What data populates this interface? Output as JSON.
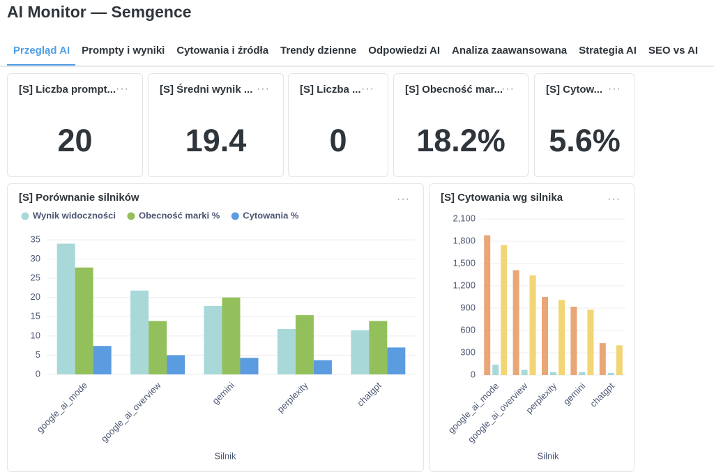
{
  "header": {
    "title": "AI Monitor — Semgence"
  },
  "tabs": {
    "items": [
      "Przegląd AI",
      "Prompty i wyniki",
      "Cytowania i źródła",
      "Trendy dzienne",
      "Odpowiedzi AI",
      "Analiza zaawansowana",
      "Strategia AI",
      "SEO vs AI"
    ],
    "active": 0
  },
  "kpis": [
    {
      "title": "[S] Liczba prompt...",
      "value": "20"
    },
    {
      "title": "[S] Średni wynik ...",
      "value": "19.4"
    },
    {
      "title": "[S] Liczba ...",
      "value": "0"
    },
    {
      "title": "[S] Obecność mar...",
      "value": "18.2%"
    },
    {
      "title": "[S] Cytow...",
      "value": "5.6%"
    }
  ],
  "chart_data": [
    {
      "type": "bar",
      "title": "[S] Porównanie silników",
      "x_label": "Silnik",
      "categories": [
        "google_ai_mode",
        "google_ai_overview",
        "gemini",
        "perplexity",
        "chatgpt"
      ],
      "series": [
        {
          "name": "Wynik widoczności",
          "color": "#a8d8d8",
          "values": [
            34,
            21.8,
            17.8,
            11.8,
            11.5
          ]
        },
        {
          "name": "Obecność marki %",
          "color": "#93c05a",
          "values": [
            27.8,
            13.9,
            20,
            15.4,
            13.9
          ]
        },
        {
          "name": "Cytowania %",
          "color": "#5b9be0",
          "values": [
            7.4,
            5,
            4.3,
            3.7,
            7
          ]
        }
      ],
      "ylim": [
        0,
        35
      ],
      "yticks": [
        0,
        5,
        10,
        15,
        20,
        25,
        30,
        35
      ],
      "grid": true,
      "legend": "top"
    },
    {
      "type": "bar",
      "title": "[S] Cytowania wg silnika",
      "x_label": "Silnik",
      "categories": [
        "google_ai_mode",
        "google_ai_overview",
        "perplexity",
        "gemini",
        "chatgpt"
      ],
      "series": [
        {
          "color": "#e9a677",
          "values": [
            1880,
            1410,
            1050,
            920,
            430
          ]
        },
        {
          "color": "#a8d8d8",
          "values": [
            140,
            70,
            40,
            40,
            30
          ]
        },
        {
          "color": "#f2d574",
          "values": [
            1750,
            1340,
            1010,
            880,
            400
          ]
        }
      ],
      "ylim": [
        0,
        2100
      ],
      "yticks": [
        0,
        300,
        600,
        900,
        {
          "value": 1200,
          "label": "1,200"
        },
        {
          "value": 1500,
          "label": "1,500"
        },
        {
          "value": 1800,
          "label": "1,800"
        },
        {
          "value": 2100,
          "label": "2,100"
        }
      ],
      "grid": true
    }
  ]
}
